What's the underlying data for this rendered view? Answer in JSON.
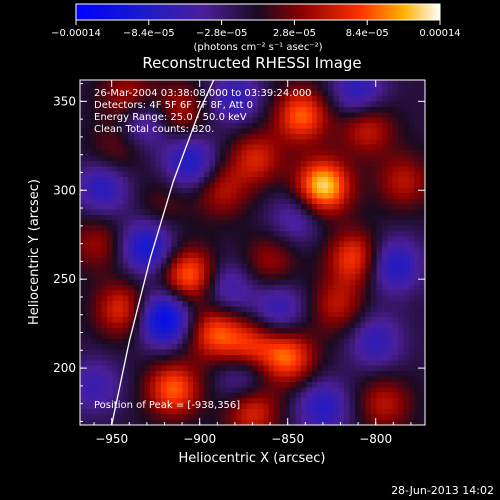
{
  "footer_date": "28-Jun-2013 14:02",
  "chart_data": {
    "type": "heatmap",
    "title": "Reconstructed RHESSI Image",
    "xlabel": "Heliocentric X (arcsec)",
    "ylabel": "Heliocentric Y (arcsec)",
    "xlim": [
      -968,
      -772
    ],
    "ylim": [
      168,
      362
    ],
    "x_ticks": [
      -950,
      -900,
      -850,
      -800
    ],
    "y_ticks": [
      200,
      250,
      300,
      350
    ],
    "x_tick_labels": [
      "−950",
      "−900",
      "−850",
      "−800"
    ],
    "y_tick_labels": [
      "200",
      "250",
      "300",
      "350"
    ],
    "colorbar": {
      "range": [
        -0.00014,
        0.00014
      ],
      "tick_values": [
        -0.00014,
        -8.4e-05,
        -2.8e-05,
        2.8e-05,
        8.4e-05,
        0.00014
      ],
      "tick_labels": [
        "−0.00014",
        "−8.4e−05",
        "−2.8e−05",
        "2.8e−05",
        "8.4e−05",
        "0.00014"
      ],
      "units_label": "(photons cm⁻² s⁻¹ asec⁻²)"
    },
    "annotations": [
      "26-Mar-2004 03:38:08.000 to 03:39:24.000",
      "Detectors: 4F 5F 6F 7F 8F, Att 0",
      "Energy Range: 25.0 - 50.0 keV",
      "Clean     Total counts: 820."
    ],
    "peak_label": "Position of Peak = [-938,356]",
    "peak_position": [
      -938,
      356
    ],
    "limb_curve": [
      [
        -950,
        168
      ],
      [
        -940,
        215
      ],
      [
        -928,
        262
      ],
      [
        -915,
        305
      ],
      [
        -900,
        345
      ],
      [
        -892,
        362
      ]
    ],
    "blobs": [
      {
        "x": -948,
        "y": 322,
        "v": 4e-05
      },
      {
        "x": -921,
        "y": 292,
        "v": 3e-05
      },
      {
        "x": -906,
        "y": 252,
        "v": 0.00011
      },
      {
        "x": -892,
        "y": 220,
        "v": 9e-05
      },
      {
        "x": -872,
        "y": 212,
        "v": 8e-05
      },
      {
        "x": -850,
        "y": 206,
        "v": 0.0001
      },
      {
        "x": -830,
        "y": 302,
        "v": 0.00014
      },
      {
        "x": -842,
        "y": 342,
        "v": 0.0001
      },
      {
        "x": -812,
        "y": 262,
        "v": 9e-05
      },
      {
        "x": -805,
        "y": 335,
        "v": 7e-05
      },
      {
        "x": -784,
        "y": 305,
        "v": 6e-05
      },
      {
        "x": -940,
        "y": 352,
        "v": 7e-05
      },
      {
        "x": -912,
        "y": 345,
        "v": 6e-05
      },
      {
        "x": -958,
        "y": 270,
        "v": 5e-05
      },
      {
        "x": -944,
        "y": 233,
        "v": 8e-05
      },
      {
        "x": -915,
        "y": 188,
        "v": 0.0001
      },
      {
        "x": -870,
        "y": 176,
        "v": 8e-05
      },
      {
        "x": -888,
        "y": 300,
        "v": 6e-05
      },
      {
        "x": -868,
        "y": 318,
        "v": 7e-05
      },
      {
        "x": -795,
        "y": 180,
        "v": 6e-05
      },
      {
        "x": -822,
        "y": 235,
        "v": 6e-05
      },
      {
        "x": -860,
        "y": 260,
        "v": 5e-05
      },
      {
        "x": -920,
        "y": 228,
        "v": -0.00012
      },
      {
        "x": -930,
        "y": 268,
        "v": -9e-05
      },
      {
        "x": -955,
        "y": 302,
        "v": -7e-05
      },
      {
        "x": -932,
        "y": 340,
        "v": -7e-05
      },
      {
        "x": -905,
        "y": 315,
        "v": -8e-05
      },
      {
        "x": -885,
        "y": 245,
        "v": -6e-05
      },
      {
        "x": -875,
        "y": 195,
        "v": -6e-05
      },
      {
        "x": -845,
        "y": 285,
        "v": -5e-05
      },
      {
        "x": -810,
        "y": 355,
        "v": -7e-05
      },
      {
        "x": -790,
        "y": 258,
        "v": -8e-05
      },
      {
        "x": -800,
        "y": 215,
        "v": -6e-05
      },
      {
        "x": -855,
        "y": 233,
        "v": -6e-05
      },
      {
        "x": -830,
        "y": 178,
        "v": -7e-05
      },
      {
        "x": -960,
        "y": 190,
        "v": -5e-05
      },
      {
        "x": -880,
        "y": 352,
        "v": -6e-05
      }
    ]
  }
}
